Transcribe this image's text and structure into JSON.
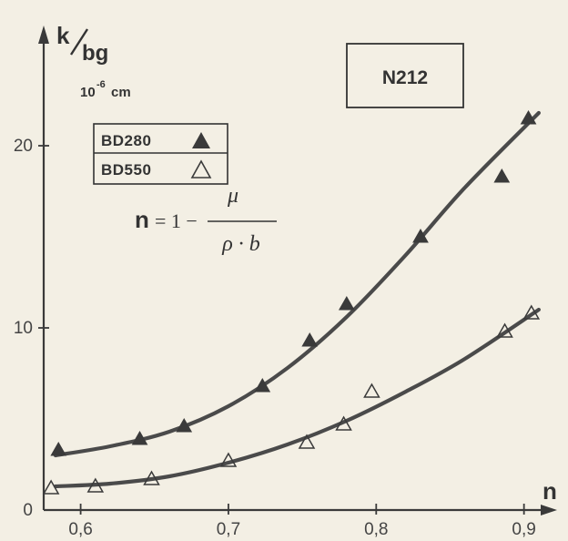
{
  "chart_data": {
    "type": "scatter",
    "title": "N212",
    "ylabel_main": "k",
    "ylabel_sub": "bg",
    "yunit_base": "10",
    "yunit_exp": "-6",
    "yunit_suffix": "cm",
    "xlabel": "n",
    "xlim": [
      0.575,
      0.915
    ],
    "ylim": [
      0,
      23
    ],
    "x_ticks": [
      {
        "value": 0.6,
        "label": "0,6"
      },
      {
        "value": 0.7,
        "label": "0,7"
      },
      {
        "value": 0.8,
        "label": "0,8"
      },
      {
        "value": 0.9,
        "label": "0,9"
      }
    ],
    "y_ticks": [
      {
        "value": 0,
        "label": "0"
      },
      {
        "value": 10,
        "label": "10"
      },
      {
        "value": 20,
        "label": "20"
      }
    ],
    "formula": {
      "lhs": "n",
      "eq": "= 1 −",
      "numerator": "μ",
      "denominator": "ρ · b"
    },
    "legend_placement": "top-left",
    "series": [
      {
        "name": "BD280",
        "marker": "filled-triangle",
        "x": [
          0.585,
          0.64,
          0.67,
          0.723,
          0.755,
          0.78,
          0.83,
          0.885,
          0.903
        ],
        "y": [
          3.3,
          3.9,
          4.6,
          6.8,
          9.3,
          11.3,
          15.0,
          18.3,
          21.5
        ]
      },
      {
        "name": "BD550",
        "marker": "open-triangle",
        "x": [
          0.58,
          0.61,
          0.648,
          0.7,
          0.753,
          0.778,
          0.797,
          0.887,
          0.905
        ],
        "y": [
          1.2,
          1.3,
          1.7,
          2.7,
          3.7,
          4.7,
          6.5,
          9.8,
          10.8
        ]
      }
    ],
    "fit_curves": [
      {
        "series": "BD280",
        "x": [
          0.583,
          0.62,
          0.66,
          0.7,
          0.74,
          0.78,
          0.82,
          0.86,
          0.91
        ],
        "y": [
          3.0,
          3.5,
          4.3,
          5.7,
          7.8,
          10.6,
          14.0,
          17.7,
          21.8
        ]
      },
      {
        "series": "BD550",
        "x": [
          0.583,
          0.62,
          0.66,
          0.7,
          0.74,
          0.78,
          0.82,
          0.86,
          0.91
        ],
        "y": [
          1.3,
          1.45,
          1.85,
          2.6,
          3.6,
          4.9,
          6.5,
          8.3,
          11.0
        ]
      }
    ]
  }
}
